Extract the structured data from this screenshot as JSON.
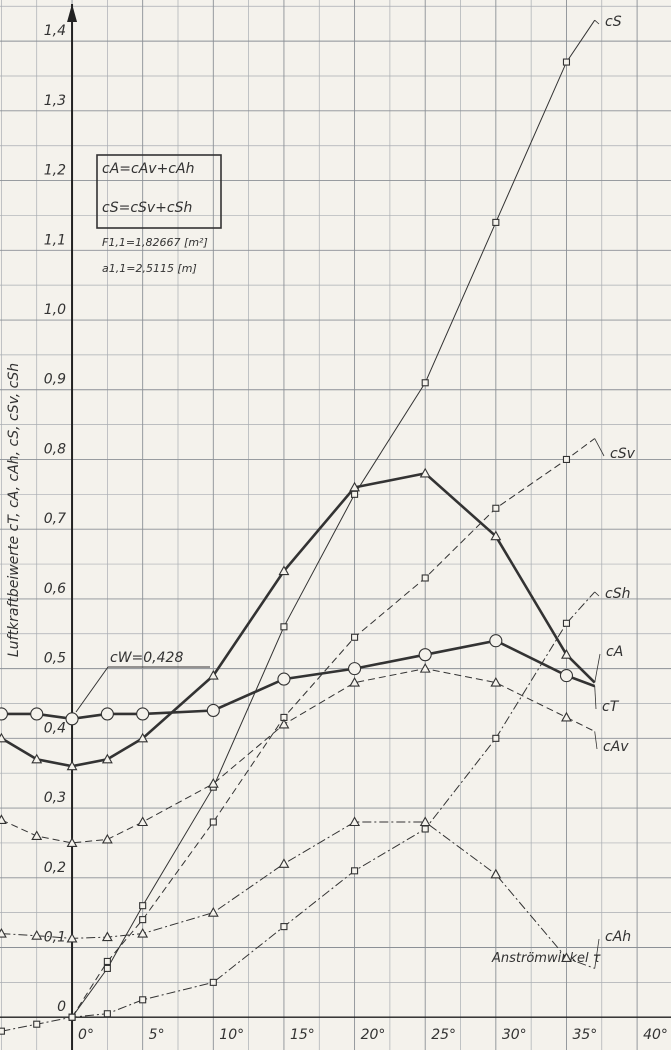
{
  "chart_data": {
    "type": "line",
    "y_label": "Luftkraftbeiwerte cT, cA, cAh, cS, cSv, cSh",
    "x_label": "Anströmwinkel τ",
    "annotations": [
      "cA=cAv+cAh",
      "cS=cSv+cSh",
      "F1,1=1,82667 [m²]",
      "a1,1=2,5115 [m]",
      "cW=0,428"
    ],
    "xlim": [
      -5.1,
      42.4
    ],
    "ylim": [
      -0.047,
      1.459
    ],
    "xticks": [
      {
        "value": 0,
        "label": "0°"
      },
      {
        "value": 5,
        "label": "5°"
      },
      {
        "value": 10,
        "label": "10°"
      },
      {
        "value": 15,
        "label": "15°"
      },
      {
        "value": 20,
        "label": "20°"
      },
      {
        "value": 25,
        "label": "25°"
      },
      {
        "value": 30,
        "label": "30°"
      },
      {
        "value": 35,
        "label": "35°"
      },
      {
        "value": 40,
        "label": "40°"
      }
    ],
    "yticks": [
      0,
      {
        "value": 0.1,
        "label": "0,1"
      },
      {
        "value": 0.2,
        "label": "0,2"
      },
      {
        "value": 0.3,
        "label": "0,3"
      },
      {
        "value": 0.4,
        "label": "0,4"
      },
      {
        "value": 0.5,
        "label": "0,5"
      },
      {
        "value": 0.6,
        "label": "0,6"
      },
      {
        "value": 0.7,
        "label": "0,7"
      },
      {
        "value": 0.8,
        "label": "0,8"
      },
      {
        "value": 0.9,
        "label": "0,9"
      },
      {
        "value": 1.0,
        "label": "1,0"
      },
      {
        "value": 1.1,
        "label": "1,1"
      },
      {
        "value": 1.2,
        "label": "1,2"
      },
      {
        "value": 1.3,
        "label": "1,3"
      },
      {
        "value": 1.4,
        "label": "1,4"
      }
    ],
    "grid": true,
    "series": [
      {
        "name": "cS",
        "color": "#333333",
        "marker": "square",
        "dash": "solid",
        "width": 1,
        "x": [
          0,
          2.5,
          5,
          10,
          15,
          20,
          25,
          30,
          35,
          37
        ],
        "values": [
          0,
          0.07,
          0.16,
          0.33,
          0.56,
          0.75,
          0.91,
          1.14,
          1.37,
          1.43
        ]
      },
      {
        "name": "cSv",
        "color": "#333333",
        "marker": "square",
        "dash": "dashed",
        "width": 1,
        "x": [
          0,
          2.5,
          5,
          10,
          15,
          20,
          25,
          30,
          35,
          37
        ],
        "values": [
          0,
          0.08,
          0.14,
          0.28,
          0.43,
          0.545,
          0.63,
          0.73,
          0.8,
          0.83
        ]
      },
      {
        "name": "cSh",
        "color": "#333333",
        "marker": "square",
        "dash": "dashdot",
        "width": 1,
        "x": [
          -5,
          -2.5,
          0,
          2.5,
          5,
          10,
          15,
          20,
          25,
          30,
          35,
          37
        ],
        "values": [
          -0.02,
          -0.01,
          0,
          0.005,
          0.025,
          0.05,
          0.13,
          0.21,
          0.27,
          0.4,
          0.565,
          0.61
        ]
      },
      {
        "name": "cA",
        "color": "#333333",
        "marker": "triangle",
        "dash": "solid",
        "width": 2.6,
        "x": [
          -5,
          -2.5,
          0,
          2.5,
          5,
          10,
          15,
          20,
          25,
          30,
          35,
          37
        ],
        "values": [
          0.4,
          0.37,
          0.36,
          0.37,
          0.4,
          0.49,
          0.64,
          0.76,
          0.78,
          0.69,
          0.52,
          0.48
        ]
      },
      {
        "name": "cT",
        "color": "#333333",
        "marker": "circle",
        "dash": "solid",
        "width": 2.6,
        "x": [
          -5,
          -2.5,
          0,
          2.5,
          5,
          10,
          15,
          20,
          25,
          30,
          35,
          37
        ],
        "values": [
          0.435,
          0.435,
          0.428,
          0.435,
          0.435,
          0.44,
          0.485,
          0.5,
          0.52,
          0.54,
          0.49,
          0.475
        ]
      },
      {
        "name": "cAv",
        "color": "#333333",
        "marker": "triangle",
        "dash": "dashed",
        "width": 1,
        "x": [
          -5,
          -2.5,
          0,
          2.5,
          5,
          10,
          15,
          20,
          25,
          30,
          35,
          37
        ],
        "values": [
          0.283,
          0.26,
          0.25,
          0.255,
          0.28,
          0.335,
          0.42,
          0.48,
          0.5,
          0.48,
          0.43,
          0.41
        ]
      },
      {
        "name": "cAh",
        "color": "#333333",
        "marker": "triangle",
        "dash": "dashdot",
        "width": 1,
        "x": [
          -5,
          -2.5,
          0,
          2.5,
          5,
          10,
          15,
          20,
          25,
          30,
          35,
          37
        ],
        "values": [
          0.12,
          0.117,
          0.113,
          0.115,
          0.12,
          0.15,
          0.22,
          0.28,
          0.28,
          0.205,
          0.085,
          0.07
        ]
      }
    ]
  }
}
